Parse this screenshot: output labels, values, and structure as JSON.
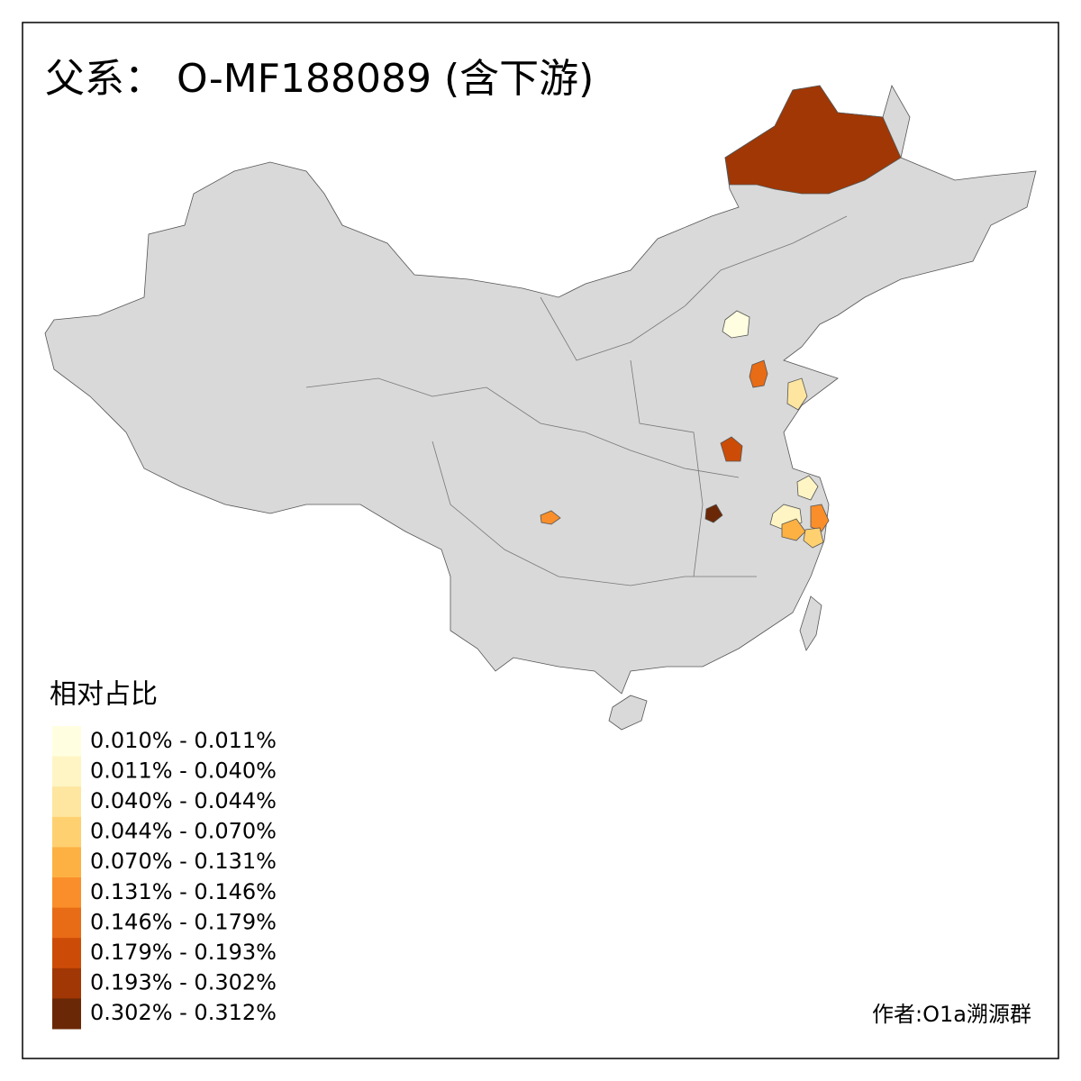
{
  "title": "父系： O-MF188089 (含下游)",
  "legend": {
    "title": "相对占比",
    "items": [
      {
        "label": "0.010% - 0.011%",
        "color": "#fffee0"
      },
      {
        "label": "0.011% - 0.040%",
        "color": "#fff5c4"
      },
      {
        "label": "0.040% - 0.044%",
        "color": "#fee6a0"
      },
      {
        "label": "0.044% - 0.070%",
        "color": "#fed070"
      },
      {
        "label": "0.070% - 0.131%",
        "color": "#fdb143"
      },
      {
        "label": "0.131% - 0.146%",
        "color": "#f98e2a"
      },
      {
        "label": "0.146% - 0.179%",
        "color": "#e86b16"
      },
      {
        "label": "0.179% - 0.193%",
        "color": "#cc4c07"
      },
      {
        "label": "0.193% - 0.302%",
        "color": "#a13704"
      },
      {
        "label": "0.302% - 0.312%",
        "color": "#6b2806"
      }
    ]
  },
  "credit": "作者:O1a溯源群"
}
